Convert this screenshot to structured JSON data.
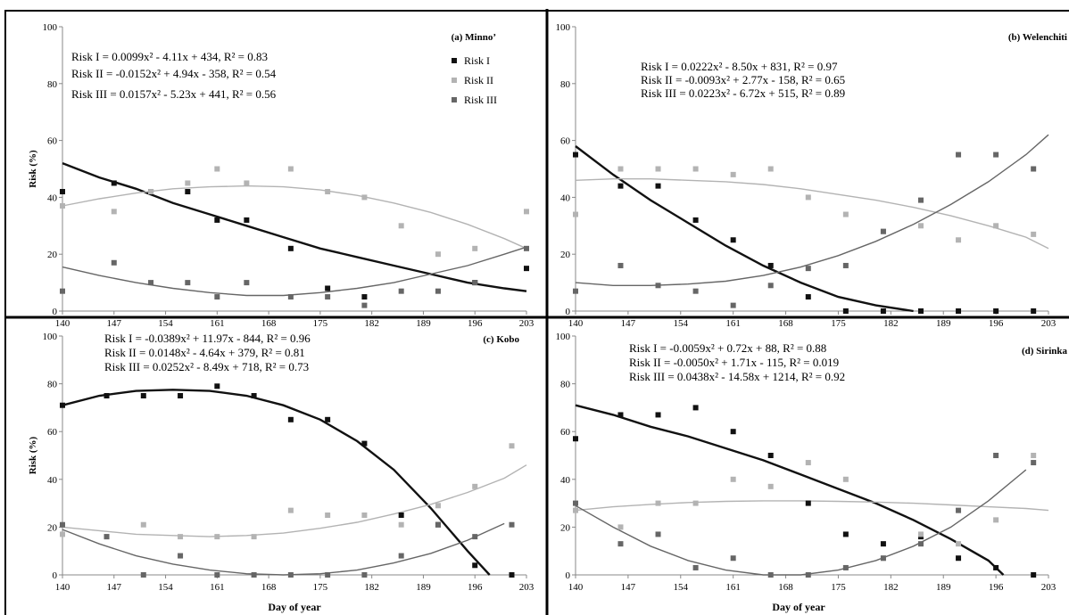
{
  "figure": {
    "x_axis_label": "Day of year",
    "y_axis_label": "Risk (%)",
    "x_ticks": [
      140,
      147,
      154,
      161,
      168,
      175,
      182,
      189,
      196,
      203
    ],
    "y_ticks": [
      0,
      20,
      40,
      60,
      80,
      100
    ],
    "colors": {
      "risk_1": "#111111",
      "risk_2": "#b3b3b3",
      "risk_3": "#666666"
    }
  },
  "chart_data": [
    {
      "type": "scatter",
      "panel_label": "(a) Minno’",
      "xlabel": "",
      "ylabel": "Risk (%)",
      "xlim": [
        140,
        203
      ],
      "ylim": [
        0,
        100
      ],
      "legend": [
        "Risk I",
        "Risk II",
        "Risk III"
      ],
      "legend_position": "top-right",
      "equations": [
        "Risk I = 0.0099x² - 4.11x + 434, R² = 0.83",
        "Risk II = -0.0152x² + 4.94x - 358, R² = 0.54",
        "Risk III = 0.0157x² - 5.23x + 441, R² = 0.56"
      ],
      "series": [
        {
          "name": "Risk I",
          "x": [
            140,
            147,
            152,
            157,
            161,
            165,
            171,
            176,
            181,
            196,
            203
          ],
          "y": [
            42,
            45,
            42,
            42,
            32,
            32,
            22,
            8,
            5,
            10,
            15
          ]
        },
        {
          "name": "Risk II",
          "x": [
            140,
            147,
            152,
            157,
            161,
            165,
            171,
            176,
            181,
            186,
            191,
            196,
            203
          ],
          "y": [
            37,
            35,
            42,
            45,
            50,
            45,
            50,
            42,
            40,
            30,
            20,
            22,
            35
          ]
        },
        {
          "name": "Risk III",
          "x": [
            140,
            147,
            152,
            157,
            161,
            165,
            171,
            176,
            181,
            186,
            191,
            196,
            203
          ],
          "y": [
            7,
            17,
            10,
            10,
            5,
            10,
            5,
            5,
            2,
            7,
            7,
            10,
            22
          ]
        }
      ],
      "trendlines": [
        {
          "name": "Risk I",
          "x": [
            140,
            145,
            150,
            155,
            160,
            165,
            170,
            175,
            180,
            185,
            190,
            195,
            200,
            203
          ],
          "y": [
            52,
            47,
            43,
            38,
            34,
            30,
            26,
            22,
            19,
            16,
            13,
            10,
            8,
            7
          ]
        },
        {
          "name": "Risk II",
          "x": [
            140,
            145,
            150,
            155,
            160,
            165,
            170,
            175,
            180,
            185,
            190,
            195,
            200,
            203
          ],
          "y": [
            37,
            39.5,
            41.5,
            43,
            43.7,
            44,
            43.7,
            42.6,
            40.7,
            38,
            34.7,
            30.5,
            25.5,
            22
          ]
        },
        {
          "name": "Risk III",
          "x": [
            140,
            145,
            150,
            155,
            160,
            165,
            170,
            175,
            180,
            185,
            190,
            195,
            200,
            203
          ],
          "y": [
            15.5,
            12.5,
            10,
            8,
            6.5,
            5.5,
            5.5,
            6.5,
            8,
            10,
            13,
            16,
            20,
            22.5
          ]
        }
      ]
    },
    {
      "type": "scatter",
      "panel_label": "(b) Welenchiti",
      "xlabel": "",
      "ylabel": "",
      "xlim": [
        140,
        203
      ],
      "ylim": [
        0,
        100
      ],
      "equations": [
        "Risk I = 0.0222x² - 8.50x + 831, R² = 0.97",
        "Risk II = -0.0093x² + 2.77x - 158, R² = 0.65",
        "Risk III = 0.0223x² - 6.72x + 515, R² = 0.89"
      ],
      "series": [
        {
          "name": "Risk I",
          "x": [
            140,
            146,
            151,
            156,
            161,
            166,
            171,
            176,
            181,
            186,
            191,
            196,
            201
          ],
          "y": [
            55,
            44,
            44,
            32,
            25,
            16,
            5,
            0,
            0,
            0,
            0,
            0,
            0
          ]
        },
        {
          "name": "Risk II",
          "x": [
            140,
            146,
            151,
            156,
            161,
            166,
            171,
            176,
            181,
            186,
            191,
            196,
            201
          ],
          "y": [
            34,
            50,
            50,
            50,
            48,
            50,
            40,
            34,
            28,
            30,
            25,
            30,
            27
          ]
        },
        {
          "name": "Risk III",
          "x": [
            140,
            146,
            151,
            156,
            161,
            166,
            171,
            176,
            181,
            186,
            191,
            196,
            201
          ],
          "y": [
            7,
            16,
            9,
            7,
            2,
            9,
            15,
            16,
            28,
            39,
            55,
            55,
            50
          ]
        }
      ],
      "trendlines": [
        {
          "name": "Risk I",
          "x": [
            140,
            145,
            150,
            155,
            160,
            165,
            170,
            175,
            180,
            185
          ],
          "y": [
            58,
            48,
            39,
            31,
            23,
            16,
            10,
            5,
            2,
            0
          ]
        },
        {
          "name": "Risk II",
          "x": [
            140,
            145,
            150,
            155,
            160,
            165,
            170,
            175,
            180,
            185,
            190,
            195,
            200,
            203
          ],
          "y": [
            46,
            46.5,
            46.5,
            46,
            45.5,
            44.5,
            43,
            41,
            39,
            36.5,
            33.5,
            30,
            26,
            22
          ]
        },
        {
          "name": "Risk III",
          "x": [
            140,
            145,
            150,
            155,
            160,
            165,
            170,
            175,
            180,
            185,
            190,
            195,
            200,
            203
          ],
          "y": [
            10,
            9,
            9,
            9.5,
            10.5,
            12.5,
            15.5,
            19.5,
            24.5,
            30.5,
            37.5,
            45.5,
            55,
            62
          ]
        }
      ]
    },
    {
      "type": "scatter",
      "panel_label": "(c) Kobo",
      "xlabel": "",
      "ylabel": "Risk (%)",
      "xlim": [
        140,
        203
      ],
      "ylim": [
        0,
        100
      ],
      "equations": [
        "Risk I = -0.0389x² + 11.97x - 844, R² = 0.96",
        "Risk II = 0.0148x² - 4.64x + 379, R² = 0.81",
        "Risk III = 0.0252x² - 8.49x + 718, R² = 0.73"
      ],
      "series": [
        {
          "name": "Risk I",
          "x": [
            140,
            146,
            151,
            156,
            161,
            166,
            171,
            176,
            181,
            186,
            191,
            196,
            201
          ],
          "y": [
            71,
            75,
            75,
            75,
            79,
            75,
            65,
            65,
            55,
            25,
            21,
            4,
            0
          ]
        },
        {
          "name": "Risk II",
          "x": [
            140,
            146,
            151,
            156,
            161,
            166,
            171,
            176,
            181,
            186,
            191,
            196,
            201
          ],
          "y": [
            17,
            16,
            21,
            16,
            16,
            16,
            27,
            25,
            25,
            21,
            29,
            37,
            54
          ]
        },
        {
          "name": "Risk III",
          "x": [
            140,
            146,
            151,
            156,
            161,
            166,
            171,
            176,
            181,
            186,
            191,
            196,
            201
          ],
          "y": [
            21,
            16,
            0,
            8,
            0,
            0,
            0,
            0,
            0,
            8,
            21,
            16,
            21
          ]
        }
      ],
      "trendlines": [
        {
          "name": "Risk I",
          "x": [
            140,
            145,
            150,
            155,
            160,
            165,
            170,
            175,
            180,
            185,
            190,
            195,
            198
          ],
          "y": [
            71,
            75,
            77,
            77.5,
            77,
            75,
            71,
            65,
            56,
            44,
            28,
            10,
            0
          ]
        },
        {
          "name": "Risk II",
          "x": [
            140,
            145,
            150,
            155,
            160,
            165,
            170,
            175,
            180,
            185,
            190,
            195,
            200,
            203
          ],
          "y": [
            20,
            18.5,
            17,
            16.5,
            16,
            16.5,
            17.5,
            19.5,
            22,
            25.5,
            29.5,
            34.5,
            40.5,
            46
          ]
        },
        {
          "name": "Risk III",
          "x": [
            140,
            145,
            150,
            155,
            160,
            165,
            170,
            175,
            180,
            185,
            190,
            195,
            200
          ],
          "y": [
            19,
            13,
            8,
            4.5,
            2,
            0.5,
            0,
            0.5,
            2,
            5,
            9,
            14.5,
            21.5
          ]
        }
      ]
    },
    {
      "type": "scatter",
      "panel_label": "(d) Sirinka",
      "xlabel": "",
      "ylabel": "",
      "xlim": [
        140,
        203
      ],
      "ylim": [
        0,
        100
      ],
      "equations": [
        "Risk I = -0.0059x² + 0.72x + 88, R² = 0.88",
        "Risk II = -0.0050x² + 1.71x - 115, R² = 0.019",
        "Risk III = 0.0438x² - 14.58x + 1214, R² = 0.92"
      ],
      "series": [
        {
          "name": "Risk I",
          "x": [
            140,
            146,
            151,
            156,
            161,
            166,
            171,
            176,
            181,
            186,
            191,
            196,
            201
          ],
          "y": [
            57,
            67,
            67,
            70,
            60,
            50,
            30,
            17,
            13,
            16,
            7,
            3,
            0
          ]
        },
        {
          "name": "Risk II",
          "x": [
            140,
            146,
            151,
            156,
            161,
            166,
            171,
            176,
            181,
            186,
            191,
            196,
            201
          ],
          "y": [
            27,
            20,
            30,
            30,
            40,
            37,
            47,
            40,
            7,
            17,
            13,
            23,
            50
          ]
        },
        {
          "name": "Risk III",
          "x": [
            140,
            146,
            151,
            156,
            161,
            166,
            171,
            176,
            181,
            186,
            191,
            196,
            201
          ],
          "y": [
            30,
            13,
            17,
            3,
            7,
            0,
            0,
            3,
            7,
            13,
            27,
            50,
            47
          ]
        }
      ],
      "trendlines": [
        {
          "name": "Risk I",
          "x": [
            140,
            145,
            150,
            155,
            160,
            165,
            170,
            175,
            180,
            185,
            190,
            195,
            197
          ],
          "y": [
            71,
            67,
            62,
            58,
            53,
            48,
            42,
            36,
            30,
            23,
            15,
            6,
            0
          ]
        },
        {
          "name": "Risk II",
          "x": [
            140,
            145,
            150,
            155,
            160,
            165,
            170,
            175,
            180,
            185,
            190,
            195,
            200,
            203
          ],
          "y": [
            27,
            28.5,
            29.5,
            30.3,
            30.8,
            31,
            31,
            30.8,
            30.5,
            30,
            29.3,
            28.5,
            27.8,
            27
          ]
        },
        {
          "name": "Risk III",
          "x": [
            140,
            145,
            150,
            155,
            160,
            165,
            170,
            175,
            180,
            185,
            190,
            195,
            200
          ],
          "y": [
            29,
            20,
            12,
            6,
            2,
            0,
            0,
            2,
            6,
            12,
            20,
            31,
            44
          ]
        }
      ]
    }
  ]
}
